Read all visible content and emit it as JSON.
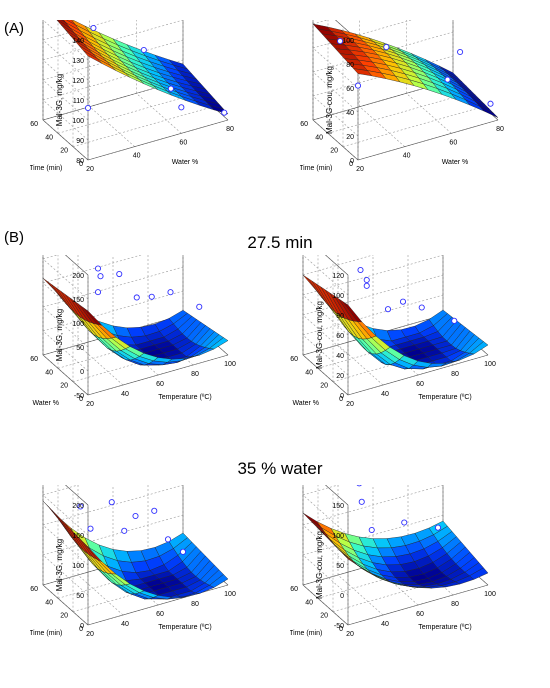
{
  "labels": {
    "panel_a": "(A)",
    "panel_b": "(B)",
    "title_b1": "27.5 min",
    "title_b2": "35 % water"
  },
  "colormap": [
    "#00008f",
    "#0040ff",
    "#00c0ff",
    "#40ffbf",
    "#bfff40",
    "#ffc000",
    "#ff4000",
    "#8f0000"
  ],
  "chart_data": [
    {
      "type": "surface3d",
      "panel": "A-left",
      "zlabel": "Mal-3G, mg/kg",
      "xlabel": "Water %",
      "ylabel": "Time (min)",
      "xticks": [
        20,
        40,
        60,
        80
      ],
      "yticks": [
        0,
        20,
        40,
        60
      ],
      "zticks": [
        80,
        90,
        100,
        110,
        120,
        130,
        140
      ],
      "xlim": [
        20,
        80
      ],
      "ylim": [
        0,
        60
      ],
      "zlim": [
        80,
        140
      ],
      "surface": {
        "x": [
          20,
          80
        ],
        "y": [
          0,
          60
        ],
        "z": [
          [
            132,
            83
          ],
          [
            138,
            88
          ]
        ],
        "curve": -4
      },
      "points": [
        [
          20,
          0,
          106
        ],
        [
          40,
          55,
          121
        ],
        [
          60,
          0,
          93
        ],
        [
          60,
          50,
          105
        ],
        [
          80,
          5,
          82
        ],
        [
          70,
          45,
          84
        ]
      ]
    },
    {
      "type": "surface3d",
      "panel": "A-right",
      "zlabel": "Mal-3G-cou, mg/kg",
      "xlabel": "Water %",
      "ylabel": "Time (min)",
      "xticks": [
        20,
        40,
        60,
        80
      ],
      "yticks": [
        0,
        20,
        40,
        60
      ],
      "zticks": [
        0,
        20,
        40,
        60,
        80,
        100
      ],
      "xlim": [
        20,
        80
      ],
      "ylim": [
        0,
        60
      ],
      "zlim": [
        0,
        100
      ],
      "surface": {
        "x": [
          20,
          80
        ],
        "y": [
          0,
          60
        ],
        "z": [
          [
            72,
            2
          ],
          [
            80,
            6
          ]
        ],
        "curve": 8
      },
      "points": [
        [
          20,
          0,
          62
        ],
        [
          30,
          55,
          63
        ],
        [
          45,
          40,
          58
        ],
        [
          60,
          5,
          42
        ],
        [
          75,
          35,
          40
        ],
        [
          80,
          10,
          8
        ]
      ]
    },
    {
      "type": "surface3d",
      "panel": "B1-left",
      "zlabel": "Mal-3G, mg/kg",
      "xlabel": "Temperature (ºC)",
      "ylabel": "Water %",
      "xticks": [
        20,
        40,
        60,
        80,
        100
      ],
      "yticks": [
        0,
        20,
        40,
        60
      ],
      "zticks": [
        -50,
        0,
        50,
        100,
        150,
        200
      ],
      "xlim": [
        20,
        100
      ],
      "ylim": [
        0,
        60
      ],
      "zlim": [
        -50,
        200
      ],
      "surface": {
        "x": [
          20,
          100
        ],
        "y": [
          0,
          60
        ],
        "z": [
          [
            125,
            -20
          ],
          [
            110,
            -40
          ]
        ],
        "curve": -110
      },
      "points": [
        [
          30,
          10,
          140
        ],
        [
          40,
          30,
          135
        ],
        [
          45,
          45,
          125
        ],
        [
          50,
          5,
          115
        ],
        [
          55,
          40,
          110
        ],
        [
          65,
          20,
          80
        ],
        [
          80,
          30,
          60
        ],
        [
          90,
          15,
          40
        ]
      ]
    },
    {
      "type": "surface3d",
      "panel": "B1-right",
      "zlabel": "Mal-3G-cou, mg/kg",
      "xlabel": "Temperature (ºC)",
      "ylabel": "Water %",
      "xticks": [
        20,
        40,
        60,
        80,
        100
      ],
      "yticks": [
        0,
        20,
        40,
        60
      ],
      "zticks": [
        0,
        20,
        40,
        60,
        80,
        100,
        120
      ],
      "xlim": [
        20,
        100
      ],
      "ylim": [
        0,
        60
      ],
      "zlim": [
        0,
        120
      ],
      "surface": {
        "x": [
          20,
          100
        ],
        "y": [
          0,
          60
        ],
        "z": [
          [
            90,
            10
          ],
          [
            80,
            5
          ]
        ],
        "curve": -60
      },
      "points": [
        [
          30,
          50,
          125
        ],
        [
          35,
          10,
          95
        ],
        [
          40,
          30,
          95
        ],
        [
          45,
          5,
          70
        ],
        [
          50,
          45,
          70
        ],
        [
          60,
          20,
          60
        ],
        [
          75,
          30,
          40
        ],
        [
          85,
          10,
          35
        ]
      ]
    },
    {
      "type": "surface3d",
      "panel": "B2-left",
      "zlabel": "Mal-3G, mg/kg",
      "xlabel": "Temperature (ºC)",
      "ylabel": "Time (min)",
      "xticks": [
        20,
        40,
        60,
        80,
        100
      ],
      "yticks": [
        0,
        20,
        40,
        60
      ],
      "zticks": [
        0,
        50,
        100,
        150,
        200
      ],
      "xlim": [
        20,
        100
      ],
      "ylim": [
        0,
        60
      ],
      "zlim": [
        0,
        200
      ],
      "surface": {
        "x": [
          20,
          100
        ],
        "y": [
          0,
          60
        ],
        "z": [
          [
            130,
            10
          ],
          [
            140,
            20
          ]
        ],
        "curve": -90
      },
      "points": [
        [
          30,
          20,
          130
        ],
        [
          35,
          45,
          135
        ],
        [
          45,
          10,
          125
        ],
        [
          55,
          50,
          120
        ],
        [
          60,
          30,
          115
        ],
        [
          70,
          10,
          90
        ],
        [
          75,
          40,
          100
        ],
        [
          85,
          25,
          40
        ]
      ]
    },
    {
      "type": "surface3d",
      "panel": "B2-right",
      "zlabel": "Mal-3G-cou, mg/kg",
      "xlabel": "Temperature (ºC)",
      "ylabel": "Time (min)",
      "xticks": [
        20,
        40,
        60,
        80,
        100
      ],
      "yticks": [
        0,
        20,
        40,
        60
      ],
      "zticks": [
        -50,
        0,
        50,
        100,
        150
      ],
      "xlim": [
        20,
        100
      ],
      "ylim": [
        0,
        60
      ],
      "zlim": [
        -50,
        150
      ],
      "surface": {
        "x": [
          20,
          100
        ],
        "y": [
          0,
          60
        ],
        "z": [
          [
            60,
            -30
          ],
          [
            70,
            -10
          ]
        ],
        "curve": -60
      },
      "points": [
        [
          40,
          15,
          75
        ],
        [
          45,
          40,
          90
        ],
        [
          50,
          55,
          100
        ],
        [
          65,
          30,
          50
        ],
        [
          80,
          20,
          40
        ]
      ]
    }
  ]
}
